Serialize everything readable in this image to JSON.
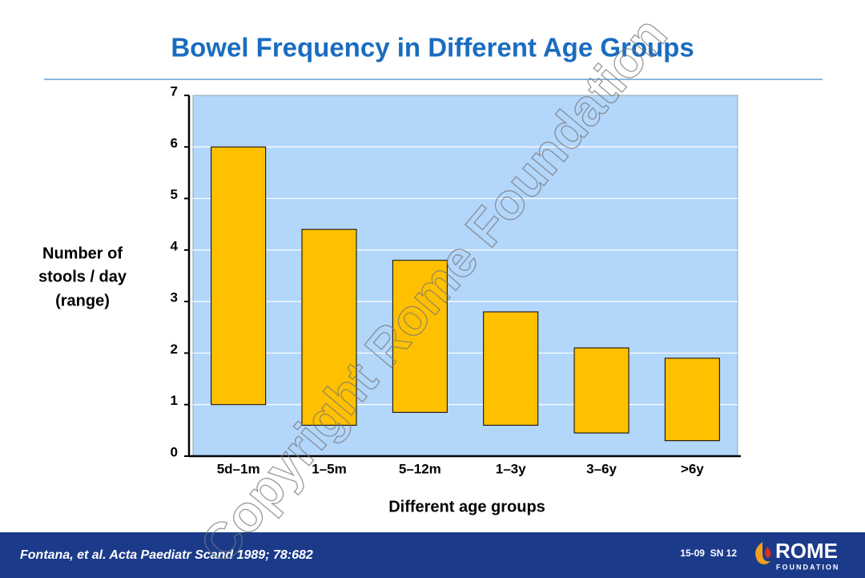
{
  "chart_data": {
    "type": "range-bar",
    "title": "Bowel Frequency in Different Age Groups",
    "y_label": [
      "Number of",
      "stools / day",
      "(range)"
    ],
    "x_label": "Different age groups",
    "categories": [
      "5d–1m",
      "1–5m",
      "5–12m",
      "1–3y",
      "3–6y",
      ">6y"
    ],
    "values": [
      [
        1,
        6
      ],
      [
        0.6,
        4.4
      ],
      [
        0.85,
        3.8
      ],
      [
        0.6,
        2.8
      ],
      [
        0.45,
        2.1
      ],
      [
        0.3,
        1.9
      ]
    ],
    "color": "#ffc000",
    "ylim": [
      0,
      7
    ],
    "yticks": [
      0,
      1,
      2,
      3,
      4,
      5,
      6,
      7
    ],
    "grid": true
  },
  "watermark": "Copyright Rome Foundation",
  "footer": {
    "citation": "Fontana, et al. Acta Paediatr Scand 1989; 78:682",
    "slide_code": "15-09  SN 12",
    "logo": {
      "name": "ROME",
      "subtitle": "FOUNDATION"
    }
  }
}
